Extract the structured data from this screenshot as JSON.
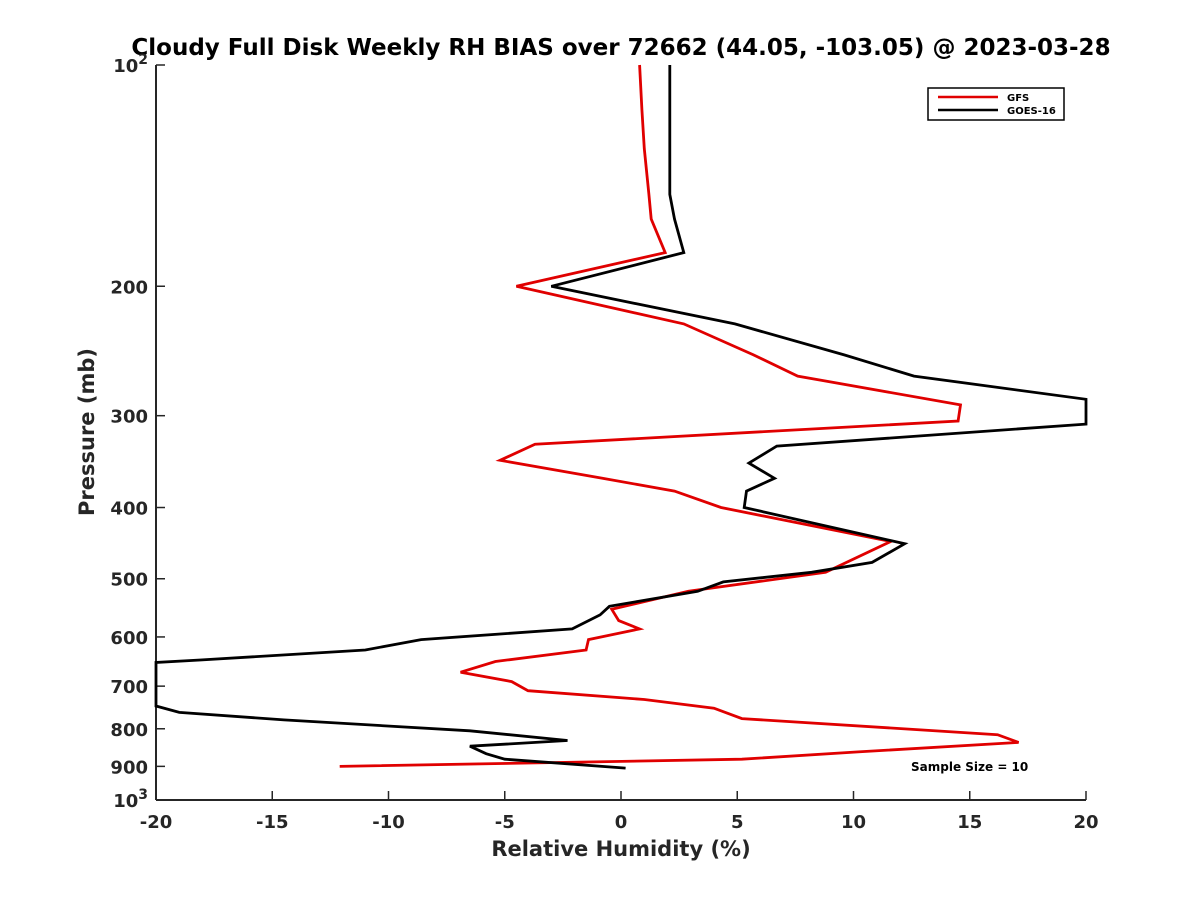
{
  "chart_data": {
    "type": "line",
    "title": "Cloudy Full Disk Weekly RH BIAS over 72662 (44.05, -103.05) @ 2023-03-28",
    "xlabel": "Relative Humidity (%)",
    "ylabel": "Pressure (mb)",
    "xlim": [
      -20,
      20
    ],
    "ylim": [
      100,
      1000
    ],
    "y_scale": "log",
    "y_reversed": true,
    "grid": false,
    "legend_position": "top-right",
    "x_ticks": [
      -20,
      -15,
      -10,
      -5,
      0,
      5,
      10,
      15,
      20
    ],
    "x_tick_labels": [
      "-20",
      "-15",
      "-10",
      "-5",
      "0",
      "5",
      "10",
      "15",
      "20"
    ],
    "y_ticks": [
      100,
      200,
      300,
      400,
      500,
      600,
      700,
      800,
      900,
      1000
    ],
    "y_tick_labels": [
      {
        "base": "10",
        "sup": "2"
      },
      {
        "base": "200",
        "sup": ""
      },
      {
        "base": "300",
        "sup": ""
      },
      {
        "base": "400",
        "sup": ""
      },
      {
        "base": "500",
        "sup": ""
      },
      {
        "base": "600",
        "sup": ""
      },
      {
        "base": "700",
        "sup": ""
      },
      {
        "base": "800",
        "sup": ""
      },
      {
        "base": "900",
        "sup": ""
      },
      {
        "base": "10",
        "sup": "3"
      }
    ],
    "annotation": "Sample Size = 10",
    "series": [
      {
        "name": "GFS",
        "color": "#e00000",
        "points": [
          [
            0.8,
            100
          ],
          [
            0.9,
            115
          ],
          [
            1.0,
            130
          ],
          [
            1.2,
            150
          ],
          [
            1.3,
            162
          ],
          [
            1.9,
            180
          ],
          [
            -4.5,
            200
          ],
          [
            2.7,
            225
          ],
          [
            5.7,
            248
          ],
          [
            7.6,
            265
          ],
          [
            14.6,
            290
          ],
          [
            14.5,
            305
          ],
          [
            -3.7,
            328
          ],
          [
            -5.2,
            345
          ],
          [
            -0.8,
            365
          ],
          [
            2.3,
            380
          ],
          [
            4.3,
            400
          ],
          [
            11.6,
            445
          ],
          [
            8.8,
            490
          ],
          [
            2.9,
            520
          ],
          [
            -0.4,
            550
          ],
          [
            -0.1,
            570
          ],
          [
            0.8,
            585
          ],
          [
            -1.4,
            605
          ],
          [
            -1.5,
            625
          ],
          [
            -5.4,
            648
          ],
          [
            -6.9,
            670
          ],
          [
            -4.7,
            690
          ],
          [
            -4.0,
            710
          ],
          [
            1.0,
            730
          ],
          [
            4.0,
            750
          ],
          [
            5.2,
            775
          ],
          [
            16.2,
            815
          ],
          [
            17.1,
            835
          ],
          [
            10.2,
            860
          ],
          [
            5.2,
            880
          ],
          [
            -12.1,
            900
          ]
        ]
      },
      {
        "name": "GOES-16",
        "color": "#000000",
        "points": [
          [
            2.1,
            100
          ],
          [
            2.1,
            115
          ],
          [
            2.1,
            130
          ],
          [
            2.1,
            150
          ],
          [
            2.3,
            162
          ],
          [
            2.7,
            180
          ],
          [
            -3.0,
            200
          ],
          [
            4.9,
            225
          ],
          [
            9.6,
            248
          ],
          [
            12.6,
            265
          ],
          [
            20.0,
            285
          ],
          [
            20.0,
            308
          ],
          [
            6.7,
            330
          ],
          [
            5.5,
            348
          ],
          [
            6.6,
            365
          ],
          [
            5.4,
            380
          ],
          [
            5.3,
            400
          ],
          [
            12.2,
            448
          ],
          [
            10.8,
            475
          ],
          [
            8.2,
            490
          ],
          [
            4.4,
            505
          ],
          [
            3.3,
            520
          ],
          [
            -0.5,
            545
          ],
          [
            -0.9,
            560
          ],
          [
            -2.1,
            585
          ],
          [
            -8.6,
            605
          ],
          [
            -11.0,
            625
          ],
          [
            -18.1,
            645
          ],
          [
            -20.0,
            650
          ],
          [
            -20.0,
            745
          ],
          [
            -19.0,
            760
          ],
          [
            -14.5,
            778
          ],
          [
            -6.5,
            805
          ],
          [
            -2.3,
            830
          ],
          [
            -6.5,
            845
          ],
          [
            -5.8,
            865
          ],
          [
            -5.0,
            880
          ],
          [
            0.2,
            905
          ]
        ]
      }
    ]
  }
}
